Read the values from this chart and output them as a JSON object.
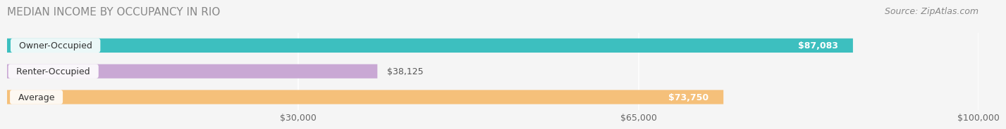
{
  "title": "MEDIAN INCOME BY OCCUPANCY IN RIO",
  "source": "Source: ZipAtlas.com",
  "categories": [
    "Owner-Occupied",
    "Renter-Occupied",
    "Average"
  ],
  "values": [
    87083,
    38125,
    73750
  ],
  "bar_colors": [
    "#3dbfbf",
    "#c9a8d4",
    "#f5c07a"
  ],
  "value_labels": [
    "$87,083",
    "$38,125",
    "$73,750"
  ],
  "xlim": [
    0,
    100000
  ],
  "xticks": [
    30000,
    65000,
    100000
  ],
  "xtick_labels": [
    "$30,000",
    "$65,000",
    "$100,000"
  ],
  "bar_height": 0.55,
  "background_color": "#f5f5f5",
  "label_bg_color": "#ffffff",
  "title_fontsize": 11,
  "source_fontsize": 9,
  "tick_fontsize": 9,
  "bar_label_fontsize": 9,
  "category_fontsize": 9
}
